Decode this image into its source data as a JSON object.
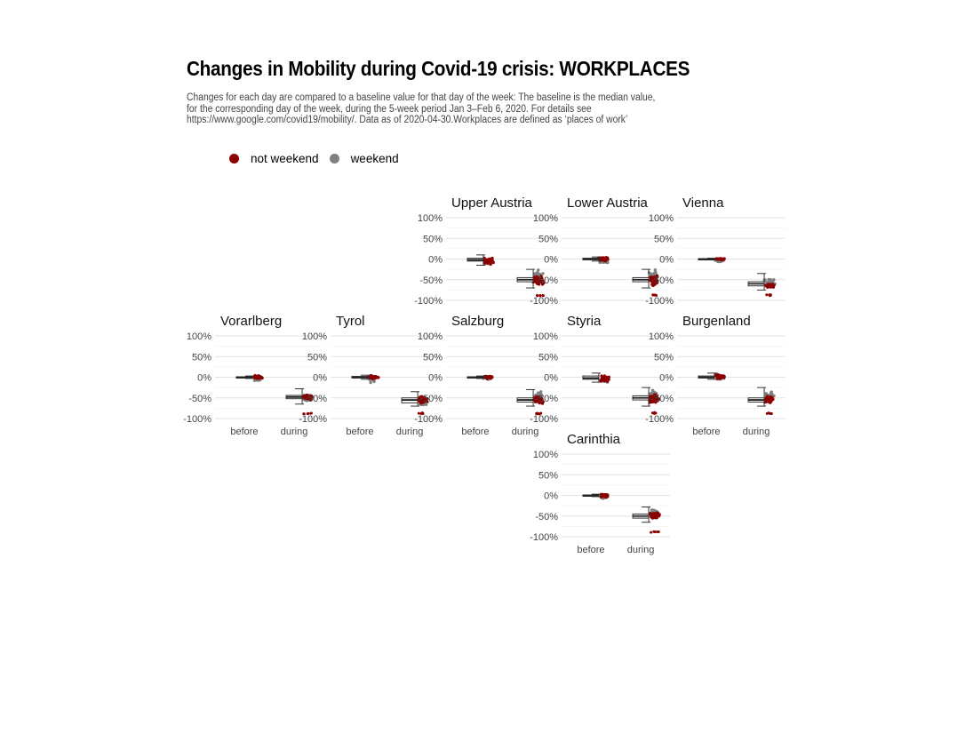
{
  "chart_data": {
    "type": "box+jitter",
    "title": "Changes in Mobility during Covid-19 crisis: WORKPLACES",
    "subtitle": "Changes for each day are compared to a baseline value for that day of the week: The baseline is the median value, for the corresponding day of the week, during the 5-week period Jan 3–Feb 6, 2020. For details see https://www.google.com/covid19/mobility/. Data as of 2020-04-30.Workplaces are defined as ‘places of work’",
    "xlabel": "",
    "ylabel": "",
    "categories": [
      "before",
      "during"
    ],
    "yticks": [
      "100%",
      "50%",
      "0%",
      "-50%",
      "-100%"
    ],
    "ylim": [
      -100,
      100
    ],
    "legend": {
      "placement": "top-left",
      "items": [
        {
          "label": "not weekend",
          "color": "#8B0000"
        },
        {
          "label": "weekend",
          "color": "#808080"
        }
      ]
    },
    "grid": true,
    "panels": [
      {
        "name": "Upper Austria",
        "row": 0,
        "col": 2,
        "before": {
          "min": -15,
          "q1": -5,
          "median": -2,
          "q3": 2,
          "max": 10,
          "wd_center": -5,
          "wd_spread": 12,
          "we_center": -8,
          "we_spread": 14
        },
        "during": {
          "min": -70,
          "q1": -55,
          "median": -50,
          "q3": -45,
          "max": -25,
          "wd_center": -52,
          "wd_spread": 14,
          "we_center": -40,
          "we_spread": 15,
          "low_cluster": -88
        }
      },
      {
        "name": "Lower Austria",
        "row": 0,
        "col": 3,
        "before": {
          "min": -5,
          "q1": -2,
          "median": 0,
          "q3": 2,
          "max": 5,
          "wd_center": 0,
          "wd_spread": 6,
          "we_center": -6,
          "we_spread": 7
        },
        "during": {
          "min": -70,
          "q1": -55,
          "median": -50,
          "q3": -45,
          "max": -25,
          "wd_center": -52,
          "wd_spread": 14,
          "we_center": -38,
          "we_spread": 15,
          "low_cluster": -87
        }
      },
      {
        "name": "Vienna",
        "row": 0,
        "col": 4,
        "before": {
          "min": -2,
          "q1": -1,
          "median": 0,
          "q3": 1,
          "max": 2,
          "wd_center": 0,
          "wd_spread": 2,
          "we_center": -4,
          "we_spread": 4
        },
        "during": {
          "min": -75,
          "q1": -65,
          "median": -60,
          "q3": -55,
          "max": -35,
          "wd_center": -65,
          "wd_spread": 6,
          "we_center": -55,
          "we_spread": 10,
          "low_cluster": -88
        }
      },
      {
        "name": "Vorarlberg",
        "row": 1,
        "col": 0,
        "before": {
          "min": -3,
          "q1": -1,
          "median": 0,
          "q3": 1,
          "max": 3,
          "wd_center": 0,
          "wd_spread": 5,
          "we_center": -6,
          "we_spread": 6
        },
        "during": {
          "min": -65,
          "q1": -52,
          "median": -48,
          "q3": -44,
          "max": -28,
          "wd_center": -48,
          "wd_spread": 8,
          "we_center": -50,
          "we_spread": 10,
          "low_cluster": -88
        }
      },
      {
        "name": "Tyrol",
        "row": 1,
        "col": 1,
        "before": {
          "min": -5,
          "q1": -2,
          "median": 0,
          "q3": 2,
          "max": 5,
          "wd_center": 0,
          "wd_spread": 5,
          "we_center": -5,
          "we_spread": 10
        },
        "during": {
          "min": -70,
          "q1": -62,
          "median": -55,
          "q3": -50,
          "max": -35,
          "wd_center": -55,
          "wd_spread": 10,
          "we_center": -60,
          "we_spread": 10,
          "low_cluster": -87
        }
      },
      {
        "name": "Salzburg",
        "row": 1,
        "col": 2,
        "before": {
          "min": -3,
          "q1": -1,
          "median": 0,
          "q3": 1,
          "max": 3,
          "wd_center": 0,
          "wd_spread": 4,
          "we_center": -2,
          "we_spread": 5
        },
        "during": {
          "min": -70,
          "q1": -60,
          "median": -55,
          "q3": -50,
          "max": -30,
          "wd_center": -55,
          "wd_spread": 10,
          "we_center": -45,
          "we_spread": 12,
          "low_cluster": -88
        }
      },
      {
        "name": "Styria",
        "row": 1,
        "col": 3,
        "before": {
          "min": -12,
          "q1": -5,
          "median": -2,
          "q3": 3,
          "max": 10,
          "wd_center": -3,
          "wd_spread": 10,
          "we_center": -8,
          "we_spread": 10
        },
        "during": {
          "min": -70,
          "q1": -55,
          "median": -50,
          "q3": -45,
          "max": -25,
          "wd_center": -52,
          "wd_spread": 12,
          "we_center": -40,
          "we_spread": 14,
          "low_cluster": -87
        }
      },
      {
        "name": "Burgenland",
        "row": 1,
        "col": 4,
        "before": {
          "min": -5,
          "q1": -2,
          "median": 0,
          "q3": 3,
          "max": 10,
          "wd_center": 2,
          "wd_spread": 7,
          "we_center": -2,
          "we_spread": 8
        },
        "during": {
          "min": -70,
          "q1": -60,
          "median": -55,
          "q3": -50,
          "max": -25,
          "wd_center": -55,
          "wd_spread": 10,
          "we_center": -45,
          "we_spread": 12,
          "low_cluster": -87
        }
      },
      {
        "name": "Carinthia",
        "row": 2,
        "col": 3,
        "before": {
          "min": -3,
          "q1": -1,
          "median": 0,
          "q3": 1,
          "max": 3,
          "wd_center": 0,
          "wd_spread": 5,
          "we_center": -5,
          "we_spread": 8
        },
        "during": {
          "min": -65,
          "q1": -55,
          "median": -50,
          "q3": -45,
          "max": -28,
          "wd_center": -50,
          "wd_spread": 10,
          "we_center": -40,
          "we_spread": 12,
          "low_cluster": -88
        }
      }
    ]
  }
}
